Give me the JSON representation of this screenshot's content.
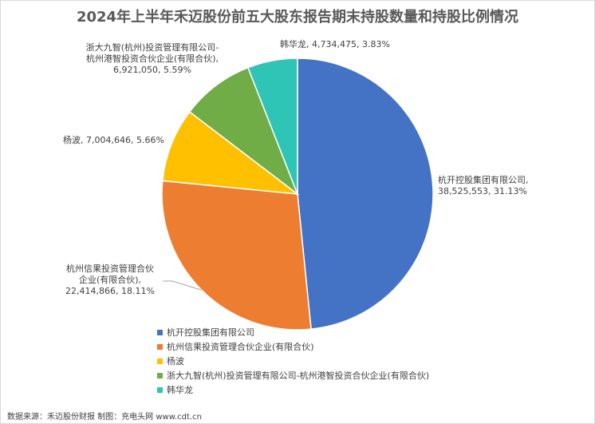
{
  "chart_data": {
    "type": "pie",
    "title": "2024年上半年禾迈股份前五大股东报告期末持股数量和持股比例情况",
    "categories": [
      "杭开控股集团有限公司",
      "杭州信果投资管理合伙企业(有限合伙)",
      "杨波",
      "浙大九智(杭州)投资管理有限公司-杭州港智投资合伙企业(有限合伙)",
      "韩华龙"
    ],
    "values": [
      38525553,
      22414866,
      7004646,
      6921050,
      4734475
    ],
    "percents": [
      "31.13%",
      "18.11%",
      "5.66%",
      "5.59%",
      "3.83%"
    ],
    "data_labels": [
      [
        "杭开控股集团有限公司,",
        "38,525,553, 31.13%"
      ],
      [
        "杭州信果投资管理合伙",
        "企业(有限合伙),",
        "22,414,866, 18.11%"
      ],
      [
        "杨波, 7,004,646, 5.66%"
      ],
      [
        "浙大九智(杭州)投资管理有限公司-",
        "杭州港智投资合伙企业(有限合伙),",
        "6,921,050, 5.59%"
      ],
      [
        "韩华龙, 4,734,475, 3.83%"
      ]
    ],
    "colors": [
      "#4472c4",
      "#ed7d31",
      "#ffc000",
      "#70ad47",
      "#2ec4b6"
    ],
    "legend_position": "bottom-left"
  },
  "source": "数据来源：禾迈股份财报  制图：充电头网 www.cdt.cn"
}
